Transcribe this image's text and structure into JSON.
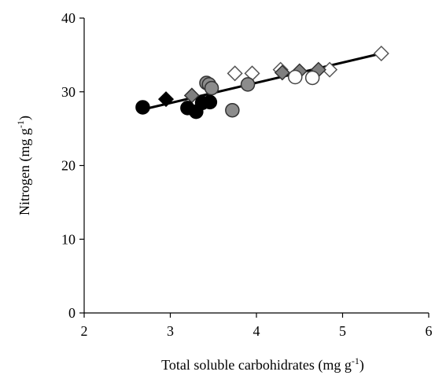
{
  "chart_data": {
    "type": "scatter",
    "xlabel": "Total soluble carbohidrates (mg  g",
    "xlabel_sup": "-1",
    "xlabel_end": ")",
    "ylabel": "Nitrogen (mg  g",
    "ylabel_sup": "-1",
    "ylabel_end": ")",
    "xlim": [
      2,
      6
    ],
    "ylim": [
      0,
      40
    ],
    "xticks": [
      "2",
      "3",
      "4",
      "5",
      "6"
    ],
    "yticks": [
      "0",
      "10",
      "20",
      "30",
      "40"
    ],
    "grid": false,
    "legend": "none",
    "series": [
      {
        "marker": "open-diamond",
        "points": [
          [
            3.75,
            32.5
          ],
          [
            3.95,
            32.5
          ],
          [
            4.28,
            33.0
          ],
          [
            4.85,
            33.0
          ],
          [
            5.45,
            35.2
          ]
        ]
      },
      {
        "marker": "gray-diamond",
        "points": [
          [
            3.25,
            29.5
          ],
          [
            4.3,
            32.6
          ],
          [
            4.5,
            32.8
          ],
          [
            4.72,
            33.0
          ]
        ]
      },
      {
        "marker": "black-diamond",
        "points": [
          [
            2.95,
            29.0
          ]
        ]
      },
      {
        "marker": "open-circle",
        "points": [
          [
            4.45,
            32.0
          ],
          [
            4.65,
            31.9
          ]
        ]
      },
      {
        "marker": "gray-circle",
        "points": [
          [
            3.42,
            31.2
          ],
          [
            3.45,
            31.0
          ],
          [
            3.48,
            30.5
          ],
          [
            3.9,
            31.0
          ],
          [
            3.72,
            27.5
          ]
        ]
      },
      {
        "marker": "black-circle",
        "points": [
          [
            2.68,
            27.9
          ],
          [
            3.2,
            27.8
          ],
          [
            3.3,
            27.3
          ],
          [
            3.37,
            28.5
          ],
          [
            3.46,
            28.6
          ]
        ]
      }
    ],
    "trendline": {
      "x": [
        2.68,
        5.45
      ],
      "y": [
        27.6,
        35.2
      ]
    }
  }
}
